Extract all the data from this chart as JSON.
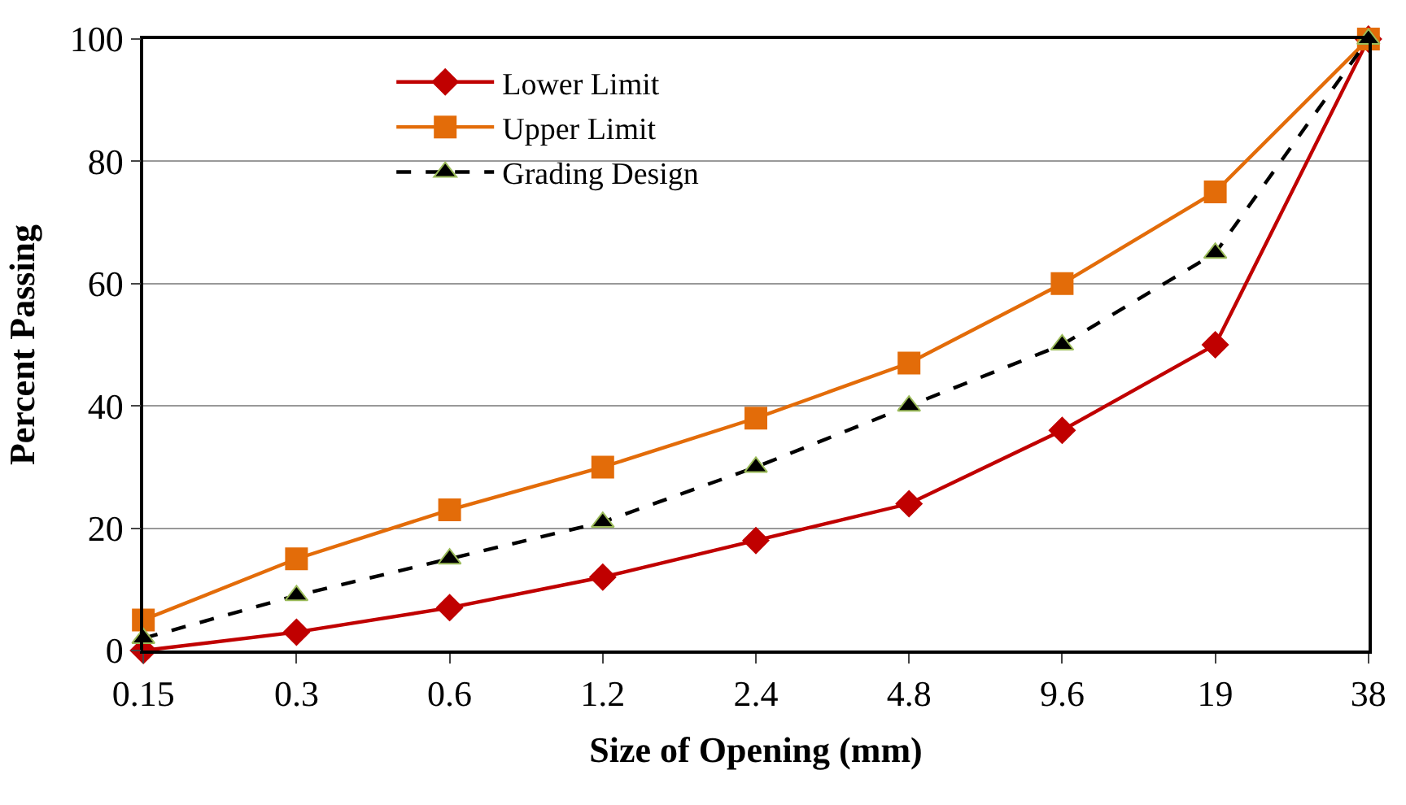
{
  "chart_data": {
    "type": "line",
    "xlabel": "Size of Opening (mm)",
    "ylabel": "Percent Passing",
    "categories": [
      "0.15",
      "0.3",
      "0.6",
      "1.2",
      "2.4",
      "4.8",
      "9.6",
      "19",
      "38"
    ],
    "series": [
      {
        "name": "Lower Limit",
        "color": "#c00000",
        "marker": "diamond",
        "line_style": "solid",
        "values": [
          0,
          3,
          7,
          12,
          18,
          24,
          36,
          50,
          100
        ]
      },
      {
        "name": "Upper Limit",
        "color": "#e36c09",
        "marker": "square",
        "line_style": "solid",
        "values": [
          5,
          15,
          23,
          30,
          38,
          47,
          60,
          75,
          100
        ]
      },
      {
        "name": "Grading Design",
        "color": "#000000",
        "marker": "triangle",
        "line_style": "dashed",
        "values": [
          2,
          9,
          15,
          21,
          30,
          40,
          50,
          65,
          100
        ]
      }
    ],
    "ylim": [
      0,
      100
    ],
    "yticks": [
      0,
      20,
      40,
      60,
      80,
      100
    ],
    "grid": "y",
    "legend": "top left"
  }
}
